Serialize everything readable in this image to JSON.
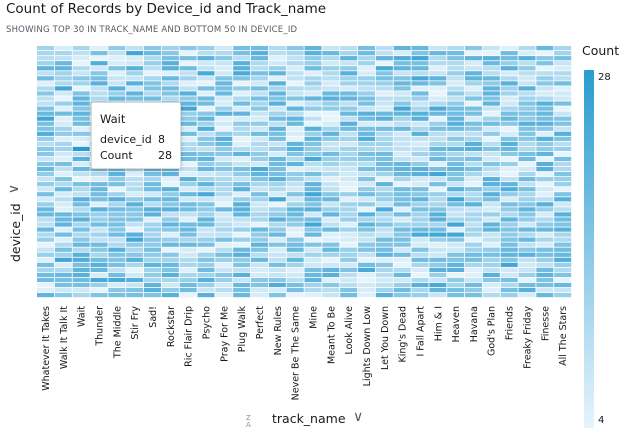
{
  "header": {
    "title": "Count of Records by Device_id and Track_name",
    "subtitle": "SHOWING TOP 30 IN TRACK_NAME AND BOTTOM 50 IN DEVICE_ID"
  },
  "legend": {
    "title": "Count",
    "max_label": "28",
    "min_label": "4",
    "color_low": "#e6f4fc",
    "color_high": "#2a9bd0"
  },
  "axes": {
    "y_label": "device_id",
    "x_label": "track_name",
    "x_sort_icon": "sort-az-icon",
    "chevron_icon": "chevron-down-icon"
  },
  "tooltip": {
    "title": "Wait",
    "row1_key": "device_id",
    "row1_value": "8",
    "row2_key": "Count",
    "row2_value": "28"
  },
  "chart_data": {
    "type": "heatmap",
    "title": "Count of Records by Device_id and Track_name",
    "subtitle": "SHOWING TOP 30 IN TRACK_NAME AND BOTTOM 50 IN DEVICE_ID",
    "xlabel": "track_name",
    "ylabel": "device_id",
    "legend_title": "Count",
    "value_range": [
      4,
      28
    ],
    "x": [
      "Whatever It Takes",
      "Walk It Talk It",
      "Wait",
      "Thunder",
      "The Middle",
      "Stir Fry",
      "Sad!",
      "Rockstar",
      "Ric Flair Drip",
      "Psycho",
      "Pray For Me",
      "Plug Walk",
      "Perfect",
      "New Rules",
      "Never Be The Same",
      "Mine",
      "Meant To Be",
      "Look Alive",
      "Lights Down Low",
      "Let You Down",
      "King's Dead",
      "I Fall Apart",
      "Him & I",
      "Heaven",
      "Havana",
      "God's Plan",
      "Friends",
      "Freaky Friday",
      "Finesse",
      "All The Stars"
    ],
    "highlighted": {
      "track_name": "Wait",
      "device_id": "8",
      "count": 28
    }
  }
}
